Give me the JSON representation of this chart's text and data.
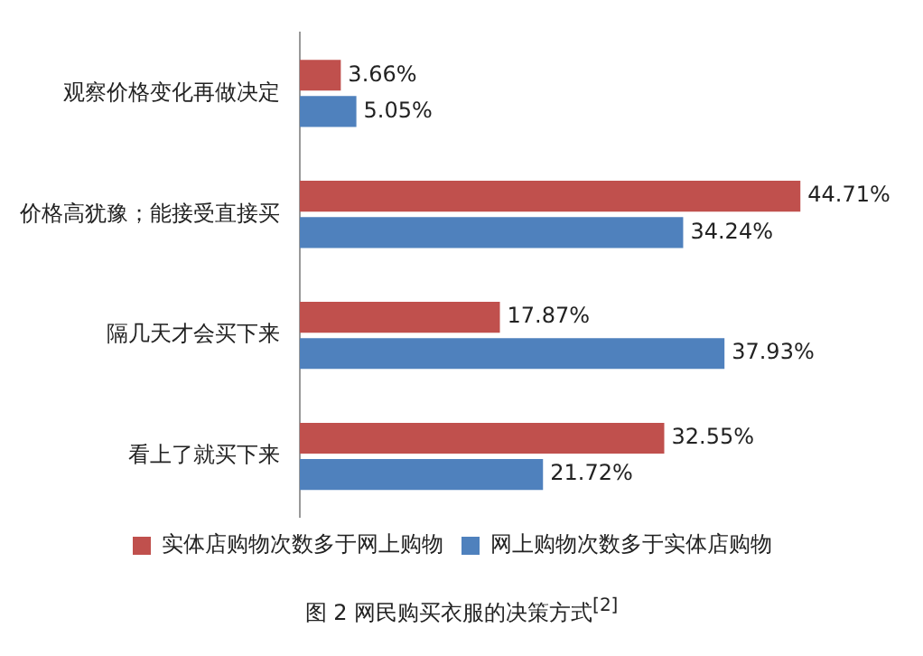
{
  "chart_data": {
    "type": "bar",
    "orientation": "horizontal",
    "title": "图 2  网民购买衣服的决策方式$^{[2]}$",
    "categories": [
      "观察价格变化再做决定",
      "价格高犹豫；能接受直接买",
      "隔几天才会买下来",
      "看上了就买下来"
    ],
    "series": [
      {
        "name": "实体店购物次数多于网上购物",
        "color": "#c0504d",
        "values": [
          3.66,
          44.71,
          17.87,
          32.55
        ],
        "value_labels": [
          "3.66%",
          "44.71%",
          "17.87%",
          "32.55%"
        ]
      },
      {
        "name": "网上购物次数多于实体店购物",
        "color": "#4f81bd",
        "values": [
          5.05,
          34.24,
          37.93,
          21.72
        ],
        "value_labels": [
          "5.05%",
          "34.24%",
          "37.93%",
          "21.72%"
        ]
      }
    ],
    "legend": "bottom"
  }
}
